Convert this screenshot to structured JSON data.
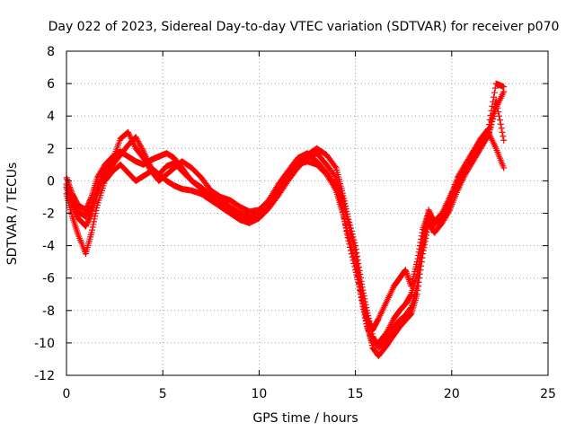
{
  "chart_data": {
    "type": "scatter",
    "title": "Day 022 of 2023, Sidereal Day-to-day VTEC variation (SDTVAR) for receiver p070",
    "xlabel": "GPS time / hours",
    "ylabel": "SDTVAR / TECUs",
    "xlim": [
      0,
      25
    ],
    "ylim": [
      -12,
      8
    ],
    "xticks": [
      "0",
      "5",
      "10",
      "15",
      "20",
      "25"
    ],
    "yticks": [
      "8",
      "6",
      "4",
      "2",
      "0",
      "-2",
      "-4",
      "-6",
      "-8",
      "-10",
      "-12"
    ],
    "grid": true,
    "marker": "+",
    "series_color": "#ff0000",
    "series": [
      {
        "x": [
          0.0,
          0.3,
          0.6,
          1.0,
          1.3,
          1.6,
          2.0,
          2.4,
          2.8,
          3.2,
          3.6,
          4.0,
          4.4,
          4.8,
          5.2,
          5.6,
          6.0,
          6.5,
          7.0,
          7.5,
          8.0,
          8.5,
          9.0,
          9.5,
          10.0,
          10.5,
          11.0,
          11.5,
          12.0,
          12.5,
          13.0,
          13.5,
          14.0,
          14.3,
          14.6,
          15.0,
          15.3,
          15.6,
          15.9,
          16.2,
          16.6,
          17.0,
          17.3,
          17.6,
          17.9,
          18.2,
          18.5,
          18.8,
          19.1,
          19.5,
          19.9,
          20.3,
          20.7,
          21.1,
          21.5,
          21.9,
          22.3,
          22.7
        ],
        "y": [
          0.2,
          -0.8,
          -1.5,
          -1.8,
          -1.0,
          0.2,
          1.0,
          1.5,
          1.8,
          1.5,
          1.2,
          1.0,
          1.3,
          1.5,
          1.7,
          1.4,
          0.8,
          0.0,
          -0.5,
          -1.0,
          -1.3,
          -1.6,
          -2.0,
          -2.2,
          -2.0,
          -1.2,
          -0.2,
          0.6,
          1.4,
          1.7,
          1.2,
          0.5,
          -0.3,
          -1.5,
          -3.5,
          -5.5,
          -7.0,
          -8.5,
          -9.2,
          -8.5,
          -7.5,
          -6.5,
          -6.0,
          -5.5,
          -6.5,
          -5.0,
          -3.0,
          -2.0,
          -2.5,
          -2.0,
          -1.0,
          0.0,
          0.8,
          1.5,
          2.5,
          3.0,
          2.0,
          0.8
        ]
      },
      {
        "x": [
          0.0,
          0.3,
          0.6,
          1.0,
          1.3,
          1.6,
          2.0,
          2.4,
          2.8,
          3.2,
          3.6,
          4.0,
          4.4,
          4.8,
          5.2,
          5.6,
          6.0,
          6.5,
          7.0,
          7.5,
          8.0,
          8.5,
          9.0,
          9.5,
          10.0,
          10.5,
          11.0,
          11.5,
          12.0,
          12.5,
          13.0,
          13.5,
          14.0,
          14.3,
          14.6,
          15.0,
          15.3,
          15.6,
          15.9,
          16.2,
          16.6,
          17.0,
          17.3,
          17.6,
          17.9,
          18.2,
          18.5,
          18.8,
          19.1,
          19.5,
          19.9,
          20.3,
          20.7,
          21.1,
          21.5,
          21.9,
          22.3,
          22.7
        ],
        "y": [
          -0.4,
          -1.5,
          -2.3,
          -2.8,
          -2.0,
          -0.8,
          0.4,
          1.0,
          1.6,
          2.2,
          2.7,
          1.8,
          0.8,
          0.4,
          0.9,
          1.1,
          0.6,
          0.0,
          -0.4,
          -0.9,
          -1.4,
          -1.8,
          -2.2,
          -2.4,
          -2.3,
          -1.7,
          -0.9,
          0.0,
          0.8,
          1.4,
          1.7,
          1.0,
          0.2,
          -1.0,
          -2.5,
          -4.5,
          -6.8,
          -8.8,
          -10.3,
          -10.8,
          -10.2,
          -9.5,
          -9.0,
          -8.6,
          -8.2,
          -7.0,
          -4.5,
          -2.6,
          -3.2,
          -2.6,
          -1.8,
          -0.6,
          0.4,
          1.2,
          2.0,
          2.8,
          4.5,
          5.5
        ]
      },
      {
        "x": [
          0.0,
          0.3,
          0.6,
          1.0,
          1.3,
          1.6,
          2.0,
          2.4,
          2.8,
          3.2,
          3.6,
          4.0,
          4.4,
          4.8,
          5.2,
          5.6,
          6.0,
          6.5,
          7.0,
          7.5,
          8.0,
          8.5,
          9.0,
          9.5,
          10.0,
          10.5,
          11.0,
          11.5,
          12.0,
          12.5,
          13.0,
          13.5,
          14.0,
          14.3,
          14.6,
          15.0,
          15.3,
          15.6,
          15.9,
          16.2,
          16.6,
          17.0,
          17.3,
          17.6,
          17.9,
          18.2,
          18.5,
          18.8,
          19.1,
          19.5,
          19.9,
          20.3,
          20.7,
          21.1,
          21.5,
          21.9,
          22.3,
          22.7
        ],
        "y": [
          -0.8,
          -2.2,
          -3.3,
          -4.5,
          -3.2,
          -1.5,
          0.0,
          0.6,
          1.0,
          0.5,
          0.0,
          0.3,
          0.6,
          0.4,
          0.0,
          -0.3,
          -0.5,
          -0.6,
          -0.8,
          -1.2,
          -1.6,
          -2.0,
          -2.4,
          -2.6,
          -2.3,
          -1.5,
          -0.6,
          0.2,
          1.0,
          1.6,
          2.0,
          1.6,
          0.8,
          -0.6,
          -2.2,
          -4.0,
          -6.2,
          -8.0,
          -9.6,
          -10.3,
          -9.8,
          -9.0,
          -8.6,
          -8.3,
          -7.8,
          -6.5,
          -4.0,
          -2.2,
          -2.7,
          -2.2,
          -1.2,
          0.2,
          1.0,
          1.8,
          2.6,
          3.2,
          6.0,
          5.8
        ]
      },
      {
        "x": [
          0.0,
          0.3,
          0.6,
          1.0,
          1.3,
          1.6,
          2.0,
          2.4,
          2.8,
          3.2,
          3.6,
          4.0,
          4.4,
          4.8,
          5.2,
          5.6,
          6.0,
          6.5,
          7.0,
          7.5,
          8.0,
          8.5,
          9.0,
          9.5,
          10.0,
          10.5,
          11.0,
          11.5,
          12.0,
          12.5,
          13.0,
          13.5,
          14.0,
          14.3,
          14.6,
          15.0,
          15.3,
          15.6,
          15.9,
          16.2,
          16.6,
          17.0,
          17.3,
          17.6,
          17.9,
          18.2,
          18.5,
          18.8,
          19.1,
          19.5,
          19.9,
          20.3,
          20.7,
          21.1,
          21.5,
          21.9,
          22.3,
          22.7
        ],
        "y": [
          -0.2,
          -1.2,
          -1.9,
          -2.2,
          -1.6,
          -0.4,
          0.6,
          1.3,
          2.6,
          3.0,
          2.0,
          1.4,
          0.6,
          0.0,
          0.4,
          0.8,
          1.2,
          0.8,
          0.2,
          -0.6,
          -1.0,
          -1.2,
          -1.6,
          -1.9,
          -1.8,
          -1.2,
          -0.5,
          0.5,
          1.0,
          1.2,
          1.0,
          0.4,
          -0.6,
          -1.8,
          -3.2,
          -5.0,
          -7.2,
          -9.0,
          -10.0,
          -10.0,
          -9.4,
          -8.5,
          -8.0,
          -7.6,
          -7.0,
          -5.8,
          -3.6,
          -1.8,
          -2.6,
          -2.3,
          -1.4,
          -0.2,
          0.6,
          1.4,
          2.2,
          2.8,
          5.0,
          2.5
        ]
      }
    ]
  }
}
